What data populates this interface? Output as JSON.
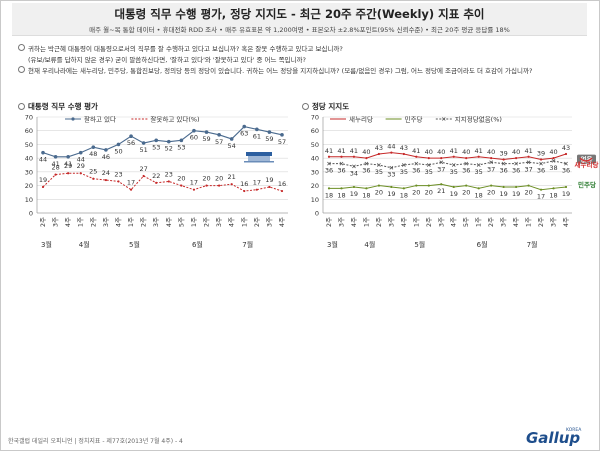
{
  "header": {
    "title": "대통령 직무 수행 평가, 정당 지지도 - 최근 20주 주간(Weekly) 지표 추이",
    "subtitle": "매주 월~목 통합 데이터 • 휴대전화 RDD 조사 • 매주 유효표본 약 1,200여명 • 표본오차 ±2.8%포인트(95% 신뢰수준) • 최근 20주 평균 응답률 18%"
  },
  "questions": [
    "귀하는 박근혜 대통령이 대통령으로서의 직무를 잘 수행하고 있다고 보십니까? 혹은 잘못 수행하고 있다고 보십니까?",
    "(유보/보류를 답하지 않은 경우) 굳이 말씀하신다면, '잘하고 있다'와 '잘못하고 있다' 중 어느 쪽입니까?",
    "현재 우리나라에는 새누리당, 민주당, 통합진보당, 정의당 등의 정당이 있습니다. 귀하는 어느 정당을 지지하십니까? (모름/없음인 경우) 그럼, 어느 정당에 조금이라도 더 호감이 가십니까?"
  ],
  "footer": "한국갤럽 데일리 오피니언 | 정치지표 - 제77호(2013년 7월 4주) - 4",
  "logo": {
    "korea": "KOREA",
    "brand": "Gallup"
  },
  "colors": {
    "approve": "#4a6a8e",
    "disapprove": "#c62828",
    "saenuri": "#c62828",
    "minju": "#6b8e23",
    "none": "#555555",
    "saenuri_badge": "#d32f2f",
    "minju_badge": "#2e7d32",
    "none_badge": "#777777"
  },
  "chart_data": [
    {
      "type": "line",
      "title": "대통령 직무 수행 평가",
      "x": [
        "2주",
        "3주",
        "4주",
        "1주",
        "2주",
        "3주",
        "4주",
        "1주",
        "2주",
        "3주",
        "4주",
        "5주",
        "1주",
        "2주",
        "3주",
        "4주",
        "1주",
        "2주",
        "3주",
        "4주"
      ],
      "month_labels": [
        "3월",
        "4월",
        "5월",
        "6월",
        "7월"
      ],
      "month_start_index": [
        0,
        3,
        7,
        12,
        16
      ],
      "ylim": [
        0,
        70
      ],
      "yticks": [
        0,
        10,
        20,
        30,
        40,
        50,
        60,
        70
      ],
      "grid": true,
      "legend": "top",
      "series": [
        {
          "name": "잘하고 있다",
          "values": [
            44,
            41,
            41,
            44,
            48,
            46,
            50,
            56,
            51,
            53,
            52,
            53,
            60,
            59,
            57,
            54,
            63,
            61,
            59,
            57
          ]
        },
        {
          "name": "잘못하고 있다(%)",
          "values": [
            19,
            28,
            29,
            29,
            25,
            24,
            23,
            17,
            27,
            22,
            23,
            20,
            17,
            20,
            20,
            21,
            16,
            17,
            19,
            16
          ]
        }
      ]
    },
    {
      "type": "line",
      "title": "정당 지지도",
      "x": [
        "2주",
        "3주",
        "4주",
        "1주",
        "2주",
        "3주",
        "4주",
        "1주",
        "2주",
        "3주",
        "4주",
        "5주",
        "1주",
        "2주",
        "3주",
        "4주",
        "1주",
        "2주",
        "3주",
        "4주"
      ],
      "month_labels": [
        "3월",
        "4월",
        "5월",
        "6월",
        "7월"
      ],
      "month_start_index": [
        0,
        3,
        7,
        12,
        16
      ],
      "ylim": [
        0,
        70
      ],
      "yticks": [
        0,
        10,
        20,
        30,
        40,
        50,
        60,
        70
      ],
      "grid": true,
      "legend": "top",
      "series": [
        {
          "name": "새누리당",
          "values": [
            41,
            41,
            41,
            40,
            43,
            44,
            43,
            41,
            40,
            40,
            41,
            40,
            41,
            40,
            39,
            40,
            41,
            39,
            40,
            43
          ]
        },
        {
          "name": "민주당",
          "values": [
            18,
            18,
            19,
            18,
            20,
            19,
            18,
            20,
            20,
            21,
            19,
            20,
            18,
            20,
            19,
            19,
            20,
            17,
            18,
            19
          ]
        },
        {
          "name": "지지정당없음(%)",
          "values": [
            36,
            36,
            34,
            36,
            35,
            33,
            35,
            36,
            35,
            37,
            35,
            36,
            35,
            37,
            36,
            36,
            37,
            36,
            38,
            36
          ]
        }
      ],
      "end_badges": {
        "none": "없음",
        "saenuri": "새누리당",
        "minju": "민주당"
      }
    }
  ]
}
